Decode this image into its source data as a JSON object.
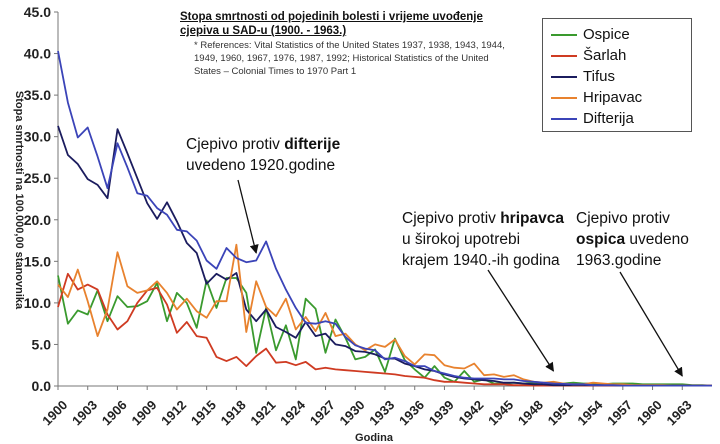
{
  "chart_data": {
    "type": "line",
    "title": "Stopa smrtnosti od pojedinih bolesti i vrijeme uvođenje cjepiva u SAD-u (1900. - 1963.)",
    "references": "* References: Vital Statistics of the United States 1937, 1938, 1943, 1944, 1949, 1960, 1967, 1976, 1987, 1992; Historical Statistics of the United States – Colonial Times to 1970 Part 1",
    "xlabel": "Godina",
    "ylabel": "Stopa smrtnosti na 100.000,00 stanovnika",
    "ylim": [
      0,
      45
    ],
    "xlim": [
      1900,
      1966
    ],
    "y_ticks": [
      "0.0",
      "5.0",
      "10.0",
      "15.0",
      "20.0",
      "25.0",
      "30.0",
      "35.0",
      "40.0",
      "45.0"
    ],
    "x_ticks": [
      "1900",
      "1903",
      "1906",
      "1909",
      "1912",
      "1915",
      "1918",
      "1921",
      "1924",
      "1927",
      "1930",
      "1933",
      "1936",
      "1939",
      "1942",
      "1945",
      "1948",
      "1951",
      "1954",
      "1957",
      "1960",
      "1963"
    ],
    "legend_position": "top-right",
    "grid": false,
    "series": [
      {
        "name": "Ospice",
        "color": "#3a9a2e",
        "x": [
          1900,
          1901,
          1902,
          1903,
          1904,
          1905,
          1906,
          1907,
          1908,
          1909,
          1910,
          1911,
          1912,
          1913,
          1914,
          1915,
          1916,
          1917,
          1918,
          1919,
          1920,
          1921,
          1922,
          1923,
          1924,
          1925,
          1926,
          1927,
          1928,
          1929,
          1930,
          1931,
          1932,
          1933,
          1934,
          1935,
          1936,
          1937,
          1938,
          1939,
          1940,
          1941,
          1942,
          1943,
          1944,
          1945,
          1946,
          1947,
          1948,
          1949,
          1950,
          1951,
          1952,
          1953,
          1954,
          1955,
          1956,
          1957,
          1958,
          1959,
          1960,
          1961,
          1962,
          1963,
          1964,
          1965,
          1966
        ],
        "y": [
          13.3,
          7.5,
          9.1,
          8.6,
          11.5,
          7.8,
          10.8,
          9.5,
          9.6,
          10.2,
          12.4,
          7.8,
          11.2,
          10.0,
          7.0,
          12.7,
          9.4,
          13.0,
          13.0,
          11.2,
          4.0,
          9.4,
          4.3,
          7.3,
          3.2,
          10.5,
          9.3,
          4.0,
          8.0,
          5.8,
          3.2,
          3.5,
          4.4,
          1.7,
          5.7,
          3.1,
          2.0,
          1.0,
          2.4,
          1.0,
          0.5,
          1.8,
          0.5,
          0.8,
          0.3,
          0.3,
          0.4,
          0.3,
          0.4,
          0.3,
          0.3,
          0.3,
          0.4,
          0.3,
          0.3,
          0.2,
          0.3,
          0.3,
          0.3,
          0.2,
          0.2,
          0.2,
          0.2,
          0.2,
          0.1,
          0.1,
          0.05
        ]
      },
      {
        "name": "Šarlah",
        "color": "#cf3b22",
        "x": [
          1900,
          1901,
          1902,
          1903,
          1904,
          1905,
          1906,
          1907,
          1908,
          1909,
          1910,
          1911,
          1912,
          1913,
          1914,
          1915,
          1916,
          1917,
          1918,
          1919,
          1920,
          1921,
          1922,
          1923,
          1924,
          1925,
          1926,
          1927,
          1928,
          1929,
          1930,
          1931,
          1932,
          1933,
          1934,
          1935,
          1936,
          1937,
          1938,
          1939,
          1940,
          1941,
          1942,
          1943,
          1944,
          1945,
          1946,
          1947,
          1948,
          1949,
          1950,
          1951,
          1952,
          1953,
          1954,
          1955,
          1956,
          1957,
          1958,
          1959,
          1960,
          1961,
          1962,
          1963,
          1964,
          1965,
          1966
        ],
        "y": [
          9.5,
          13.5,
          11.6,
          12.2,
          11.6,
          8.6,
          6.8,
          7.8,
          10.0,
          11.5,
          11.8,
          9.8,
          6.4,
          7.7,
          6.0,
          5.8,
          3.5,
          3.0,
          3.5,
          2.4,
          3.6,
          4.5,
          2.8,
          2.9,
          2.5,
          2.9,
          2.0,
          2.2,
          2.0,
          1.9,
          1.8,
          1.7,
          1.6,
          1.5,
          1.4,
          1.2,
          1.1,
          1.0,
          0.7,
          0.5,
          0.5,
          0.4,
          0.3,
          0.2,
          0.2,
          0.2,
          0.1,
          0.1,
          0.05,
          0.05,
          0.05,
          0.05,
          0.05,
          0.05,
          0.05,
          0.05,
          0.05,
          0.05,
          0.05,
          0.05,
          0.05,
          0.05,
          0.05,
          0.05,
          0.05,
          0.05,
          0.05
        ]
      },
      {
        "name": "Tifus",
        "color": "#1b1c5e",
        "x": [
          1900,
          1901,
          1902,
          1903,
          1904,
          1905,
          1906,
          1907,
          1908,
          1909,
          1910,
          1911,
          1912,
          1913,
          1914,
          1915,
          1916,
          1917,
          1918,
          1919,
          1920,
          1921,
          1922,
          1923,
          1924,
          1925,
          1926,
          1927,
          1928,
          1929,
          1930,
          1931,
          1932,
          1933,
          1934,
          1935,
          1936,
          1937,
          1938,
          1939,
          1940,
          1941,
          1942,
          1943,
          1944,
          1945,
          1946,
          1947,
          1948,
          1949,
          1950,
          1951,
          1952,
          1953,
          1954,
          1955,
          1956,
          1957,
          1958,
          1959,
          1960,
          1961,
          1962,
          1963,
          1964,
          1965,
          1966
        ],
        "y": [
          31.3,
          27.8,
          26.7,
          24.9,
          24.2,
          22.6,
          30.9,
          28.0,
          25.0,
          22.0,
          20.1,
          22.1,
          19.8,
          17.2,
          16.0,
          12.3,
          13.5,
          12.8,
          13.6,
          9.2,
          7.8,
          9.2,
          7.1,
          6.5,
          5.8,
          7.7,
          6.0,
          6.3,
          5.0,
          4.8,
          4.2,
          4.1,
          3.8,
          3.3,
          3.3,
          2.7,
          2.4,
          2.0,
          1.8,
          1.4,
          1.1,
          0.9,
          0.8,
          0.7,
          0.6,
          0.4,
          0.4,
          0.3,
          0.2,
          0.2,
          0.1,
          0.1,
          0.1,
          0.1,
          0.1,
          0.1,
          0.1,
          0.05,
          0.05,
          0.05,
          0.05,
          0.05,
          0.05,
          0.05,
          0.05,
          0.05,
          0.05
        ]
      },
      {
        "name": "Hripavac",
        "color": "#e8822e",
        "x": [
          1900,
          1901,
          1902,
          1903,
          1904,
          1905,
          1906,
          1907,
          1908,
          1909,
          1910,
          1911,
          1912,
          1913,
          1914,
          1915,
          1916,
          1917,
          1918,
          1919,
          1920,
          1921,
          1922,
          1923,
          1924,
          1925,
          1926,
          1927,
          1928,
          1929,
          1930,
          1931,
          1932,
          1933,
          1934,
          1935,
          1936,
          1937,
          1938,
          1939,
          1940,
          1941,
          1942,
          1943,
          1944,
          1945,
          1946,
          1947,
          1948,
          1949,
          1950,
          1951,
          1952,
          1953,
          1954,
          1955,
          1956,
          1957,
          1958,
          1959,
          1960,
          1961,
          1962,
          1963,
          1964,
          1965,
          1966
        ],
        "y": [
          12.2,
          10.7,
          14.0,
          10.2,
          6.0,
          9.2,
          16.1,
          12.0,
          11.2,
          11.5,
          12.6,
          11.2,
          9.2,
          10.5,
          9.0,
          8.2,
          10.2,
          10.2,
          17.0,
          6.5,
          12.6,
          9.5,
          8.4,
          10.5,
          6.8,
          8.3,
          6.6,
          8.8,
          6.0,
          6.3,
          5.0,
          4.3,
          5.0,
          4.7,
          5.6,
          3.6,
          2.6,
          3.8,
          3.7,
          2.5,
          2.2,
          2.1,
          2.7,
          1.3,
          1.4,
          1.1,
          1.3,
          0.8,
          0.5,
          0.4,
          0.5,
          0.3,
          0.2,
          0.2,
          0.4,
          0.3,
          0.2,
          0.2,
          0.1,
          0.1,
          0.1,
          0.1,
          0.05,
          0.05,
          0.05,
          0.05,
          0.05
        ]
      },
      {
        "name": "Difterija",
        "color": "#3b44b8",
        "x": [
          1900,
          1901,
          1902,
          1903,
          1904,
          1905,
          1906,
          1907,
          1908,
          1909,
          1910,
          1911,
          1912,
          1913,
          1914,
          1915,
          1916,
          1917,
          1918,
          1919,
          1920,
          1921,
          1922,
          1923,
          1924,
          1925,
          1926,
          1927,
          1928,
          1929,
          1930,
          1931,
          1932,
          1933,
          1934,
          1935,
          1936,
          1937,
          1938,
          1939,
          1940,
          1941,
          1942,
          1943,
          1944,
          1945,
          1946,
          1947,
          1948,
          1949,
          1950,
          1951,
          1952,
          1953,
          1954,
          1955,
          1956,
          1957,
          1958,
          1959,
          1960,
          1961,
          1962,
          1963,
          1964,
          1965,
          1966
        ],
        "y": [
          40.3,
          34.1,
          29.9,
          31.1,
          27.6,
          23.8,
          29.2,
          26.3,
          23.2,
          22.9,
          21.4,
          20.6,
          18.8,
          18.6,
          17.5,
          15.1,
          14.1,
          16.6,
          15.4,
          14.9,
          15.1,
          17.4,
          14.1,
          11.6,
          9.4,
          7.6,
          7.5,
          7.8,
          7.5,
          5.9,
          4.9,
          4.5,
          4.3,
          3.2,
          3.4,
          3.0,
          2.4,
          2.4,
          1.8,
          1.5,
          1.2,
          1.0,
          0.9,
          0.9,
          0.9,
          0.8,
          0.8,
          0.6,
          0.5,
          0.4,
          0.3,
          0.25,
          0.2,
          0.2,
          0.1,
          0.1,
          0.1,
          0.05,
          0.05,
          0.05,
          0.05,
          0.05,
          0.05,
          0.05,
          0.05,
          0.05,
          0.05
        ]
      }
    ],
    "annotations": [
      {
        "pre": "Cjepivo protiv ",
        "bold": "difterije",
        "post": "",
        "line2": "uvedeno 1920.godine",
        "line3": "",
        "arrow_to": [
          1920,
          16.0
        ]
      },
      {
        "pre": "Cjepivo protiv ",
        "bold": "hripavca",
        "post": "",
        "line2": "u širokoj upotrebi",
        "line3": "krajem 1940.-ih godina",
        "arrow_to": [
          1950,
          1.8
        ]
      },
      {
        "pre": "Cjepivo protiv",
        "bold": "ospica",
        "post": " uvedeno",
        "line2": "1963.godine",
        "line3": "",
        "arrow_to": [
          1963,
          1.2
        ]
      }
    ]
  }
}
